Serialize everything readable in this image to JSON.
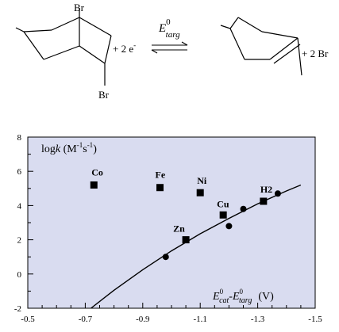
{
  "scheme": {
    "reactant_br_top": "Br",
    "reactant_br_bottom": "Br",
    "electrons": "+ 2 e",
    "electrons_sup": "-",
    "arrow_label_main": "E",
    "arrow_label_sup": "0",
    "arrow_label_sub": "targ",
    "product_addend": "+ 2 Br"
  },
  "chart_data": {
    "type": "scatter",
    "y_label_main": "log",
    "y_label_italic": "k",
    "y_label_units": "(M",
    "y_label_units_sup": "-1",
    "y_label_s": "s",
    "y_label_s_sup": "-1",
    "y_label_close": ")",
    "x_label": {
      "e1": "E",
      "e1_sup": "0",
      "e1_sub": "cat",
      "dash": "-",
      "e2": "E",
      "e2_sup": "0",
      "e2_sub": "targ",
      "unit": "(V)"
    },
    "xlim": [
      -0.5,
      -1.5
    ],
    "ylim": [
      -2,
      8
    ],
    "x_ticks": [
      "-0.5",
      "-0.7",
      "-0.9",
      "-1.1",
      "-1.3",
      "-1.5"
    ],
    "y_ticks": [
      "8",
      "6",
      "4",
      "2",
      "0",
      "-2"
    ],
    "plot_background": "#d9dcf0",
    "series": [
      {
        "marker": "square",
        "points": [
          {
            "label": "Co",
            "x": -0.73,
            "y": 5.2
          },
          {
            "label": "Fe",
            "x": -0.96,
            "y": 5.05
          },
          {
            "label": "Ni",
            "x": -1.1,
            "y": 4.75
          },
          {
            "label": "Cu",
            "x": -1.18,
            "y": 3.45
          },
          {
            "label": "H2",
            "x": -1.32,
            "y": 4.25
          },
          {
            "label": "Zn",
            "x": -1.05,
            "y": 2.0
          }
        ]
      },
      {
        "marker": "circle",
        "points": [
          {
            "x": -0.98,
            "y": 1.0
          },
          {
            "x": -1.2,
            "y": 2.8
          },
          {
            "x": -1.25,
            "y": 3.8
          },
          {
            "x": -1.37,
            "y": 4.7
          }
        ]
      }
    ],
    "fit_curve": [
      [
        -0.72,
        -2.0
      ],
      [
        -0.8,
        -0.95
      ],
      [
        -0.9,
        0.25
      ],
      [
        -1.0,
        1.35
      ],
      [
        -1.1,
        2.35
      ],
      [
        -1.2,
        3.25
      ],
      [
        -1.3,
        4.1
      ],
      [
        -1.4,
        4.85
      ],
      [
        -1.45,
        5.2
      ]
    ]
  }
}
